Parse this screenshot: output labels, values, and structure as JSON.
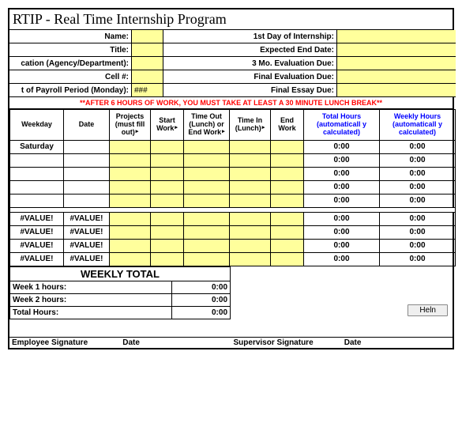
{
  "title": "RTIP - Real Time Internship Program",
  "header": {
    "rows": [
      {
        "left": "Name:",
        "input1": "",
        "right": "1st Day of Internship:",
        "input2": ""
      },
      {
        "left": "Title:",
        "input1": "",
        "right": "Expected End Date:",
        "input2": ""
      },
      {
        "left": "cation (Agency/Department):",
        "input1": "",
        "right": "3 Mo. Evaluation Due:",
        "input2": ""
      },
      {
        "left": "Cell #:",
        "input1": "",
        "right": "Final Evaluation Due:",
        "input2": ""
      },
      {
        "left": "t of Payroll Period (Monday):",
        "input1": "###",
        "right": "Final Essay Due:",
        "input2": ""
      }
    ]
  },
  "notice": "**AFTER 6 HOURS OF WORK, YOU MUST TAKE AT LEAST A 30 MINUTE LUNCH BREAK**",
  "columns": {
    "weekday": "Weekday",
    "date": "Date",
    "projects": "Projects (must fill out)",
    "start": "Start Work",
    "timeout": "Time Out (Lunch) or End Work",
    "timein": "Time In (Lunch)",
    "end": "End Work",
    "total": "Total Hours (automaticall y calculated)",
    "weekly": "Weekly Hours (automaticall y calculated)"
  },
  "cols_style": {
    "widths": [
      68,
      58,
      52,
      42,
      58,
      52,
      42,
      96,
      96
    ],
    "yellow_bg": "#ffff9c",
    "blue_text": "#0000ff"
  },
  "week1": [
    {
      "weekday": "Saturday",
      "date": "",
      "total": "0:00",
      "weekly": "0:00"
    },
    {
      "weekday": "",
      "date": "",
      "total": "0:00",
      "weekly": "0:00"
    },
    {
      "weekday": "",
      "date": "",
      "total": "0:00",
      "weekly": "0:00"
    },
    {
      "weekday": "",
      "date": "",
      "total": "0:00",
      "weekly": "0:00"
    },
    {
      "weekday": "",
      "date": "",
      "total": "0:00",
      "weekly": "0:00"
    }
  ],
  "week2": [
    {
      "weekday": "#VALUE!",
      "date": "#VALUE!",
      "total": "0:00",
      "weekly": "0:00"
    },
    {
      "weekday": "#VALUE!",
      "date": "#VALUE!",
      "total": "0:00",
      "weekly": "0:00"
    },
    {
      "weekday": "#VALUE!",
      "date": "#VALUE!",
      "total": "0:00",
      "weekly": "0:00"
    },
    {
      "weekday": "#VALUE!",
      "date": "#VALUE!",
      "total": "0:00",
      "weekly": "0:00"
    }
  ],
  "weekly_total": {
    "heading": "WEEKLY TOTAL",
    "rows": [
      {
        "label": "Week 1 hours:",
        "value": "0:00"
      },
      {
        "label": "Week 2 hours:",
        "value": "0:00"
      },
      {
        "label": "Total Hours:",
        "value": "0:00"
      }
    ]
  },
  "help_label": "Heln",
  "signatures": {
    "emp": "Employee Signature",
    "date1": "Date",
    "sup": "Supervisor Signature",
    "date2": "Date"
  }
}
